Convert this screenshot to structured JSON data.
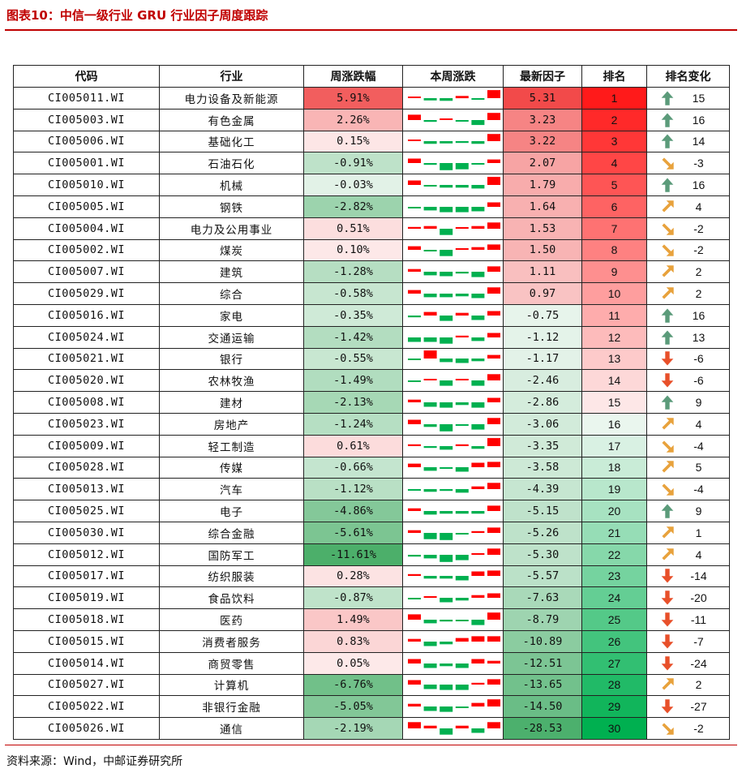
{
  "title": "图表10：中信一级行业 GRU 行业因子周度跟踪",
  "headers": [
    "代码",
    "行业",
    "周涨跌幅",
    "本周涨跌",
    "最新因子",
    "排名",
    "排名变化"
  ],
  "source": "资料来源：Wind，中邮证券研究所",
  "colors": {
    "red": "#ff0000",
    "green": "#00b050",
    "up_arrow": "#5b9b7a",
    "diag_arrow": "#e8a23c",
    "down_arrow": "#e8502a"
  },
  "rows": [
    {
      "code": "CI005011.WI",
      "name": "电力设备及新能源",
      "pct": "5.91%",
      "pct_val": 5.91,
      "factor": "5.31",
      "factor_val": 5.31,
      "rank": "1",
      "change": "15",
      "arrow": "up",
      "daily": [
        0.1,
        -0.25,
        -0.3,
        0.25,
        -0.1,
        0.9
      ]
    },
    {
      "code": "CI005003.WI",
      "name": "有色金属",
      "pct": "2.26%",
      "pct_val": 2.26,
      "factor": "3.23",
      "factor_val": 3.23,
      "rank": "2",
      "change": "16",
      "arrow": "up",
      "daily": [
        0.6,
        -0.2,
        0.1,
        -0.1,
        -0.55,
        0.8
      ]
    },
    {
      "code": "CI005006.WI",
      "name": "基础化工",
      "pct": "0.15%",
      "pct_val": 0.15,
      "factor": "3.22",
      "factor_val": 3.22,
      "rank": "3",
      "change": "14",
      "arrow": "up",
      "daily": [
        0.1,
        -0.3,
        -0.25,
        -0.2,
        -0.3,
        0.8
      ]
    },
    {
      "code": "CI005001.WI",
      "name": "石油石化",
      "pct": "-0.91%",
      "pct_val": -0.91,
      "factor": "2.07",
      "factor_val": 2.07,
      "rank": "4",
      "change": "-3",
      "arrow": "diag-down",
      "daily": [
        0.5,
        -0.2,
        -0.8,
        -0.7,
        -0.1,
        0.4
      ]
    },
    {
      "code": "CI005010.WI",
      "name": "机械",
      "pct": "-0.03%",
      "pct_val": -0.03,
      "factor": "1.79",
      "factor_val": 1.79,
      "rank": "5",
      "change": "16",
      "arrow": "up",
      "daily": [
        0.5,
        -0.1,
        -0.3,
        -0.3,
        -0.4,
        0.9
      ]
    },
    {
      "code": "CI005005.WI",
      "name": "钢铁",
      "pct": "-2.82%",
      "pct_val": -2.82,
      "factor": "1.64",
      "factor_val": 1.64,
      "rank": "6",
      "change": "4",
      "arrow": "diag-up",
      "daily": [
        -0.1,
        -0.4,
        -0.6,
        -0.6,
        -0.5,
        0.5
      ]
    },
    {
      "code": "CI005004.WI",
      "name": "电力及公用事业",
      "pct": "0.51%",
      "pct_val": 0.51,
      "factor": "1.53",
      "factor_val": 1.53,
      "rank": "7",
      "change": "-2",
      "arrow": "diag-down",
      "daily": [
        0.2,
        0.3,
        -0.7,
        0.1,
        0.3,
        0.7
      ]
    },
    {
      "code": "CI005002.WI",
      "name": "煤炭",
      "pct": "0.10%",
      "pct_val": 0.1,
      "factor": "1.50",
      "factor_val": 1.5,
      "rank": "8",
      "change": "-2",
      "arrow": "diag-down",
      "daily": [
        0.4,
        -0.1,
        -0.7,
        0.1,
        0.3,
        0.6
      ]
    },
    {
      "code": "CI005007.WI",
      "name": "建筑",
      "pct": "-1.28%",
      "pct_val": -1.28,
      "factor": "1.11",
      "factor_val": 1.11,
      "rank": "9",
      "change": "2",
      "arrow": "diag-up",
      "daily": [
        0.3,
        -0.4,
        -0.5,
        -0.2,
        -0.6,
        0.6
      ]
    },
    {
      "code": "CI005029.WI",
      "name": "综合",
      "pct": "-0.58%",
      "pct_val": -0.58,
      "factor": "0.97",
      "factor_val": 0.97,
      "rank": "10",
      "change": "2",
      "arrow": "diag-up",
      "daily": [
        0.4,
        -0.4,
        -0.4,
        -0.3,
        -0.5,
        0.7
      ]
    },
    {
      "code": "CI005016.WI",
      "name": "家电",
      "pct": "-0.35%",
      "pct_val": -0.35,
      "factor": "-0.75",
      "factor_val": -0.75,
      "rank": "11",
      "change": "16",
      "arrow": "up",
      "daily": [
        -0.2,
        0.4,
        -0.6,
        0.3,
        -0.5,
        0.5
      ]
    },
    {
      "code": "CI005024.WI",
      "name": "交通运输",
      "pct": "-1.42%",
      "pct_val": -1.42,
      "factor": "-1.12",
      "factor_val": -1.12,
      "rank": "12",
      "change": "13",
      "arrow": "up",
      "daily": [
        -0.5,
        -0.5,
        -0.7,
        0.2,
        -0.4,
        0.5
      ]
    },
    {
      "code": "CI005021.WI",
      "name": "银行",
      "pct": "-0.55%",
      "pct_val": -0.55,
      "factor": "-1.17",
      "factor_val": -1.17,
      "rank": "13",
      "change": "-6",
      "arrow": "down",
      "daily": [
        -0.1,
        0.9,
        -0.4,
        -0.5,
        -0.3,
        0.4
      ]
    },
    {
      "code": "CI005020.WI",
      "name": "农林牧渔",
      "pct": "-1.49%",
      "pct_val": -1.49,
      "factor": "-2.46",
      "factor_val": -2.46,
      "rank": "14",
      "change": "-6",
      "arrow": "down",
      "daily": [
        -0.1,
        0.1,
        -0.6,
        0.1,
        -0.6,
        0.7
      ]
    },
    {
      "code": "CI005008.WI",
      "name": "建材",
      "pct": "-2.13%",
      "pct_val": -2.13,
      "factor": "-2.86",
      "factor_val": -2.86,
      "rank": "15",
      "change": "9",
      "arrow": "up",
      "daily": [
        0.3,
        -0.5,
        -0.6,
        -0.3,
        -0.6,
        0.5
      ]
    },
    {
      "code": "CI005023.WI",
      "name": "房地产",
      "pct": "-1.24%",
      "pct_val": -1.24,
      "factor": "-3.06",
      "factor_val": -3.06,
      "rank": "16",
      "change": "4",
      "arrow": "diag-up",
      "daily": [
        0.5,
        -0.3,
        -0.8,
        -0.1,
        -0.6,
        0.7
      ]
    },
    {
      "code": "CI005009.WI",
      "name": "轻工制造",
      "pct": "0.61%",
      "pct_val": 0.61,
      "factor": "-3.35",
      "factor_val": -3.35,
      "rank": "17",
      "change": "-4",
      "arrow": "diag-down",
      "daily": [
        0.2,
        -0.2,
        -0.4,
        0.2,
        -0.3,
        0.9
      ]
    },
    {
      "code": "CI005028.WI",
      "name": "传媒",
      "pct": "-0.66%",
      "pct_val": -0.66,
      "factor": "-3.58",
      "factor_val": -3.58,
      "rank": "18",
      "change": "5",
      "arrow": "diag-up",
      "daily": [
        0.4,
        -0.4,
        -0.1,
        -0.5,
        0.5,
        0.6
      ]
    },
    {
      "code": "CI005013.WI",
      "name": "汽车",
      "pct": "-1.12%",
      "pct_val": -1.12,
      "factor": "-4.39",
      "factor_val": -4.39,
      "rank": "19",
      "change": "-4",
      "arrow": "diag-down",
      "daily": [
        -0.1,
        -0.3,
        -0.2,
        -0.4,
        0.3,
        0.7
      ]
    },
    {
      "code": "CI005025.WI",
      "name": "电子",
      "pct": "-4.86%",
      "pct_val": -4.86,
      "factor": "-5.15",
      "factor_val": -5.15,
      "rank": "20",
      "change": "9",
      "arrow": "up",
      "daily": [
        0.3,
        -0.4,
        -0.3,
        -0.3,
        -0.3,
        0.6
      ]
    },
    {
      "code": "CI005030.WI",
      "name": "综合金融",
      "pct": "-5.61%",
      "pct_val": -5.61,
      "factor": "-5.26",
      "factor_val": -5.26,
      "rank": "21",
      "change": "1",
      "arrow": "diag-up",
      "daily": [
        0.3,
        -0.7,
        -0.8,
        -0.1,
        0.2,
        0.6
      ]
    },
    {
      "code": "CI005012.WI",
      "name": "国防军工",
      "pct": "-11.61%",
      "pct_val": -11.61,
      "factor": "-5.30",
      "factor_val": -5.3,
      "rank": "22",
      "change": "4",
      "arrow": "diag-up",
      "daily": [
        -0.2,
        -0.4,
        -0.8,
        -0.6,
        0.1,
        0.7
      ]
    },
    {
      "code": "CI005017.WI",
      "name": "纺织服装",
      "pct": "0.28%",
      "pct_val": 0.28,
      "factor": "-5.57",
      "factor_val": -5.57,
      "rank": "23",
      "change": "-14",
      "arrow": "down",
      "daily": [
        0.2,
        -0.3,
        -0.3,
        -0.5,
        0.5,
        0.6
      ]
    },
    {
      "code": "CI005019.WI",
      "name": "食品饮料",
      "pct": "-0.87%",
      "pct_val": -0.87,
      "factor": "-7.63",
      "factor_val": -7.63,
      "rank": "24",
      "change": "-20",
      "arrow": "down",
      "daily": [
        -0.1,
        0.1,
        -0.5,
        -0.3,
        0.3,
        0.5
      ]
    },
    {
      "code": "CI005018.WI",
      "name": "医药",
      "pct": "1.49%",
      "pct_val": 1.49,
      "factor": "-8.79",
      "factor_val": -8.79,
      "rank": "25",
      "change": "-11",
      "arrow": "down",
      "daily": [
        0.6,
        -0.4,
        -0.2,
        -0.1,
        -0.6,
        0.8
      ]
    },
    {
      "code": "CI005015.WI",
      "name": "消费者服务",
      "pct": "0.83%",
      "pct_val": 0.83,
      "factor": "-10.89",
      "factor_val": -10.89,
      "rank": "26",
      "change": "-7",
      "arrow": "down",
      "daily": [
        0.3,
        -0.5,
        -0.3,
        0.4,
        0.6,
        0.6
      ]
    },
    {
      "code": "CI005014.WI",
      "name": "商贸零售",
      "pct": "0.05%",
      "pct_val": 0.05,
      "factor": "-12.51",
      "factor_val": -12.51,
      "rank": "27",
      "change": "-24",
      "arrow": "down",
      "daily": [
        0.5,
        -0.5,
        -0.3,
        -0.5,
        0.5,
        0.3
      ]
    },
    {
      "code": "CI005027.WI",
      "name": "计算机",
      "pct": "-6.76%",
      "pct_val": -6.76,
      "factor": "-13.65",
      "factor_val": -13.65,
      "rank": "28",
      "change": "2",
      "arrow": "diag-up",
      "daily": [
        0.5,
        -0.5,
        -0.6,
        -0.6,
        0.2,
        0.6
      ]
    },
    {
      "code": "CI005022.WI",
      "name": "非银行金融",
      "pct": "-5.05%",
      "pct_val": -5.05,
      "factor": "-14.50",
      "factor_val": -14.5,
      "rank": "29",
      "change": "-27",
      "arrow": "down",
      "daily": [
        0.3,
        -0.5,
        -0.6,
        -0.1,
        0.4,
        0.8
      ]
    },
    {
      "code": "CI005026.WI",
      "name": "通信",
      "pct": "-2.19%",
      "pct_val": -2.19,
      "factor": "-28.53",
      "factor_val": -28.53,
      "rank": "30",
      "change": "-2",
      "arrow": "diag-down",
      "daily": [
        0.7,
        0.3,
        -0.7,
        0.3,
        -0.5,
        0.7
      ]
    }
  ]
}
